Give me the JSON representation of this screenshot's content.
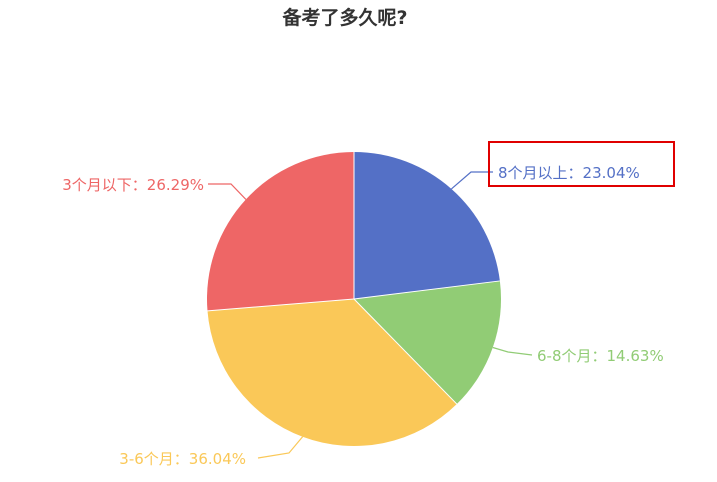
{
  "chart_data": {
    "type": "pie",
    "title": "备考了多久呢?",
    "slices": [
      {
        "name": "8个月以上",
        "value": 23.04,
        "label": "8个月以上：23.04%",
        "color": "#5470c6"
      },
      {
        "name": "6-8个月",
        "value": 14.63,
        "label": "6-8个月：14.63%",
        "color": "#91cc75"
      },
      {
        "name": "3-6个月",
        "value": 36.04,
        "label": "3-6个月：36.04%",
        "color": "#fac858"
      },
      {
        "name": "3个月以下",
        "value": 26.29,
        "label": "3个月以下：26.29%",
        "color": "#ee6666"
      }
    ],
    "start_angle": "12 o'clock",
    "direction": "clockwise",
    "legend": "none",
    "highlighted_label": "8个月以上：23.04%",
    "highlight_color": "#e00000"
  }
}
